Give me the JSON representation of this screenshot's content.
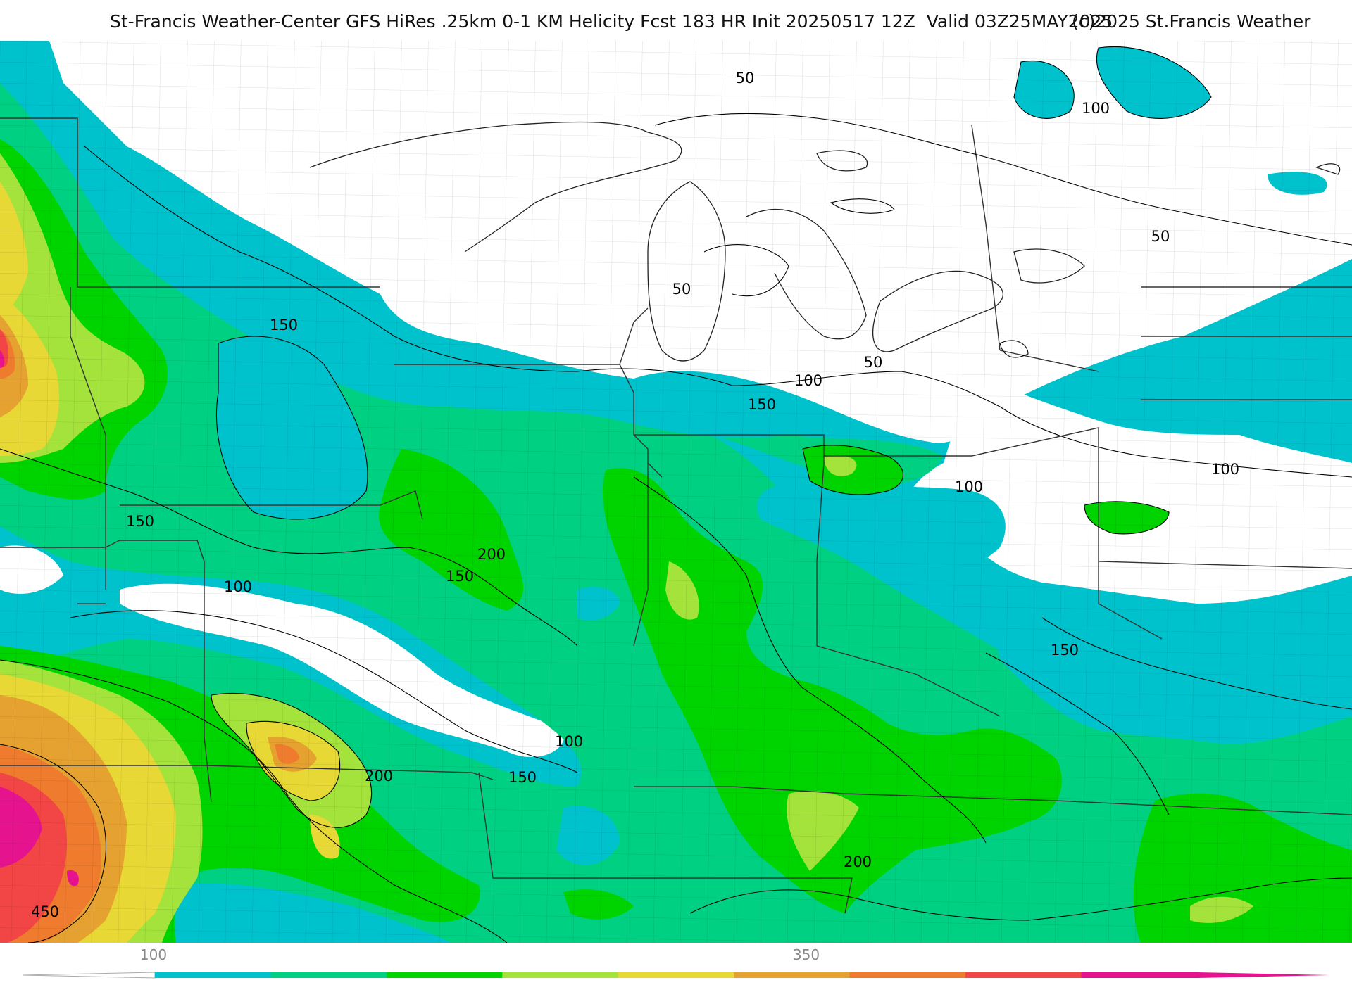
{
  "title": {
    "main": "St-Francis Weather-Center GFS HiRes .25km 0-1 KM Helicity Fcst 183 HR Init 20250517 12Z  Valid 03Z25MAY2025",
    "credit": "(c)2025 St.Francis Weather"
  },
  "contour_labels": [
    "50",
    "50",
    "50",
    "50",
    "100",
    "100",
    "100",
    "100",
    "100",
    "100",
    "150",
    "150",
    "150",
    "150",
    "150",
    "150",
    "200",
    "200",
    "200",
    "450"
  ],
  "legend": {
    "tick_labels": [
      "100",
      "350"
    ],
    "colors": [
      "#00c2cc",
      "#00d081",
      "#00d400",
      "#a3e33c",
      "#e8d835",
      "#e5a230",
      "#ee7b2e",
      "#f24545",
      "#e6138f"
    ]
  },
  "colors": {
    "map_background": "#ffffff",
    "county_lines": "#bbbbbb",
    "contour_lines": "#000000"
  }
}
